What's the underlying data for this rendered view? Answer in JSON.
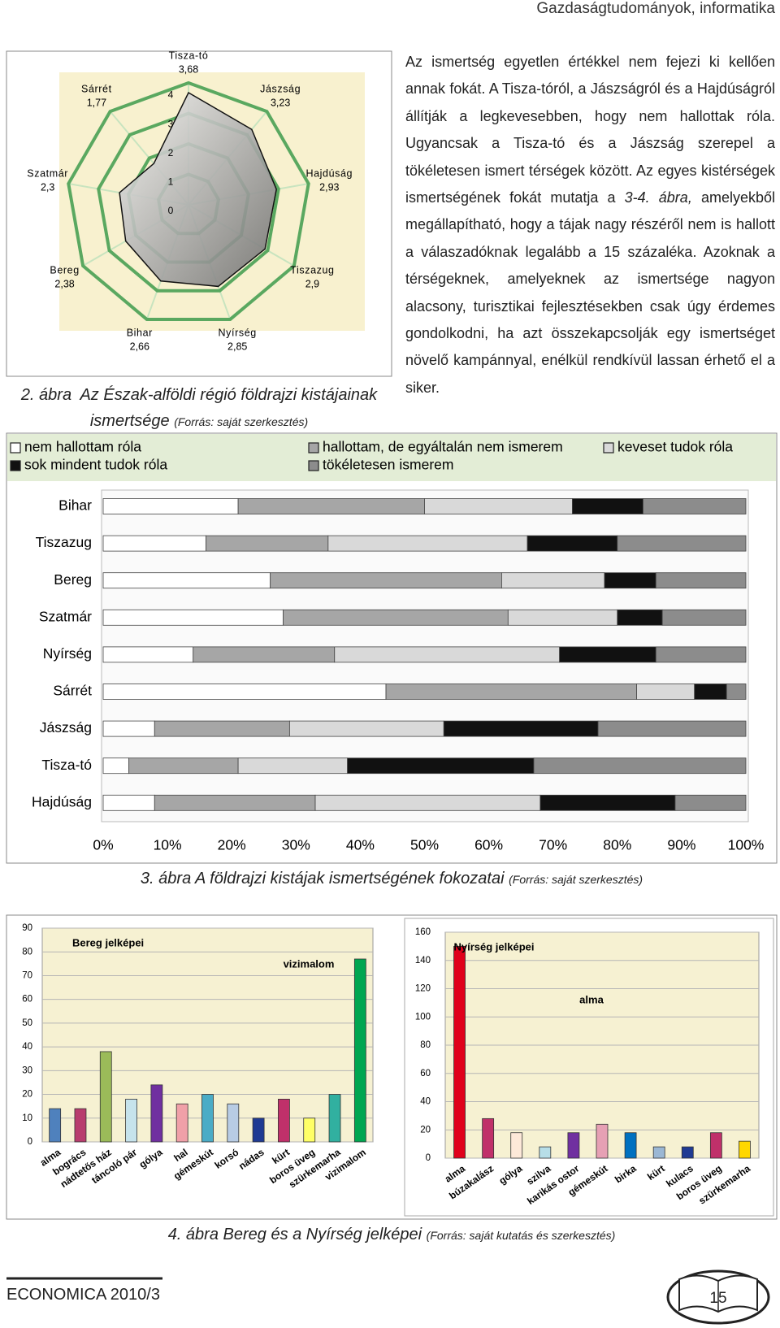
{
  "header": {
    "title": "Gazdaságtudományok, informatika"
  },
  "body_text": {
    "before": "Az ismertség egyetlen értékkel nem fejezi ki kellően annak fokát. A Tisza-tóról, a Jászságról és a Hajdúságról állítják a legkevesebben, hogy nem hallottak róla. Ugyancsak a Tisza-tó és a Jászság szerepel a tökéletesen ismert térségek között. Az egyes kistérségek ismertségének fokát mutatja a ",
    "reference": "3-4. ábra,",
    "after": " amelyekből megállapítható, hogy a tájak nagy részéről nem is hallott a válaszadóknak legalább a 15 százaléka. Azoknak a térségeknek, amelyeknek az ismertsége nagyon alacsony, turisztikai fejlesztésekben csak úgy érdemes gondolkodni, ha azt összekapcsolják egy ismertséget növelő kampánnyal, enélkül rendkívül lassan érhető el a siker."
  },
  "captions": [
    {
      "figure": "2. ábra",
      "title": "Az Észak-alföldi régió földrajzi kistájainak ismertsége",
      "source": "(Forrás: saját szerkesztés)"
    },
    {
      "figure": "3. ábra",
      "title": "A földrajzi kistájak ismertségének fokozatai",
      "source": "(Forrás: saját szerkesztés)"
    },
    {
      "figure": "4. ábra",
      "title": "Bereg és a Nyírség jelképei",
      "source": "(Forrás: saját kutatás és szerkesztés)"
    }
  ],
  "chart_data": [
    {
      "type": "radar",
      "categories": [
        "Tisza-tó",
        "Jászság",
        "Hajdúság",
        "Tiszazug",
        "Nyírség",
        "Bihar",
        "Bereg",
        "Szatmár",
        "Sárrét"
      ],
      "values": [
        3.68,
        3.23,
        2.93,
        2.9,
        2.85,
        2.66,
        2.38,
        2.3,
        1.77
      ],
      "value_labels": [
        "3,68",
        "3,23",
        "2,93",
        "2,9",
        "2,85",
        "2,66",
        "2,38",
        "2,3",
        "1,77"
      ],
      "rlim": [
        0,
        4
      ],
      "rticks": [
        0,
        1,
        2,
        3,
        4
      ],
      "grid_color": "#5aa860",
      "background": "#f8f1cf",
      "color": "#9a9a9a"
    },
    {
      "type": "stacked-barh",
      "categories": [
        "Bihar",
        "Tiszazug",
        "Bereg",
        "Szatmár",
        "Nyírség",
        "Sárrét",
        "Jászság",
        "Tisza-tó",
        "Hajdúság"
      ],
      "series": [
        {
          "name": "nem hallottam róla",
          "color": "#ffffff",
          "values": [
            21,
            16,
            26,
            28,
            14,
            44,
            8,
            4,
            8
          ]
        },
        {
          "name": "hallottam, de egyáltalán nem ismerem",
          "color": "#a6a6a6",
          "values": [
            29,
            19,
            36,
            35,
            22,
            39,
            21,
            17,
            25
          ]
        },
        {
          "name": "keveset tudok róla",
          "color": "#d9d9d9",
          "values": [
            23,
            31,
            16,
            17,
            35,
            9,
            24,
            17,
            35
          ]
        },
        {
          "name": "sok mindent tudok róla",
          "color": "#111111",
          "values": [
            11,
            14,
            8,
            7,
            15,
            5,
            24,
            29,
            21
          ]
        },
        {
          "name": "tökéletesen ismerem",
          "color": "#8c8c8c",
          "values": [
            16,
            20,
            14,
            13,
            14,
            3,
            23,
            33,
            11
          ]
        }
      ],
      "xlim": [
        0,
        100
      ],
      "xticks": [
        {
          "value": 0,
          "label": "0%"
        },
        {
          "value": 10,
          "label": "10%"
        },
        {
          "value": 20,
          "label": "20%"
        },
        {
          "value": 30,
          "label": "30%"
        },
        {
          "value": 40,
          "label": "40%"
        },
        {
          "value": 50,
          "label": "50%"
        },
        {
          "value": 60,
          "label": "60%"
        },
        {
          "value": 70,
          "label": "70%"
        },
        {
          "value": 80,
          "label": "80%"
        },
        {
          "value": 90,
          "label": "90%"
        },
        {
          "value": 100,
          "label": "100%"
        }
      ]
    },
    {
      "type": "bar",
      "title": "Bereg jelképei",
      "annotation": "vizimalom",
      "categories": [
        "alma",
        "bogrács",
        "nádtetős ház",
        "táncoló pár",
        "gólya",
        "hal",
        "gémeskút",
        "korsó",
        "nádas",
        "kürt",
        "boros üveg",
        "szürkemarha",
        "vizimalom"
      ],
      "values": [
        14,
        14,
        38,
        18,
        24,
        16,
        20,
        16,
        10,
        18,
        10,
        20,
        77
      ],
      "colors": [
        "#4f81bd",
        "#b83c6e",
        "#9bbb59",
        "#c6e3ec",
        "#7030a0",
        "#f0a0a8",
        "#4bacc6",
        "#b8cce4",
        "#1f3a93",
        "#c0306a",
        "#ffff66",
        "#31b0a0",
        "#00a651"
      ],
      "ylim": [
        0,
        90
      ],
      "yticks": [
        0,
        10,
        20,
        30,
        40,
        50,
        60,
        70,
        80,
        90
      ],
      "grid": true,
      "background": "#f6f1d2"
    },
    {
      "type": "bar",
      "title": "Nyírség jelképei",
      "annotation": "alma",
      "categories": [
        "alma",
        "búzakalász",
        "gólya",
        "szilva",
        "karikás ostor",
        "gémeskút",
        "birka",
        "kürt",
        "kulacs",
        "boros üveg",
        "szürkemarha"
      ],
      "values": [
        150,
        28,
        18,
        8,
        18,
        24,
        18,
        8,
        8,
        18,
        12
      ],
      "colors": [
        "#e0001b",
        "#c0306a",
        "#fde9d9",
        "#b7dee8",
        "#7030a0",
        "#e6a0b4",
        "#0070c0",
        "#9bb7d4",
        "#1f3a93",
        "#c0306a",
        "#ffd700"
      ],
      "ylim": [
        0,
        160
      ],
      "yticks": [
        0,
        20,
        40,
        60,
        80,
        100,
        120,
        140,
        160
      ],
      "grid": true,
      "background": "#f6f1d2"
    }
  ],
  "footer": {
    "journal": "ECONOMICA 2010/3",
    "page_number": "15"
  }
}
